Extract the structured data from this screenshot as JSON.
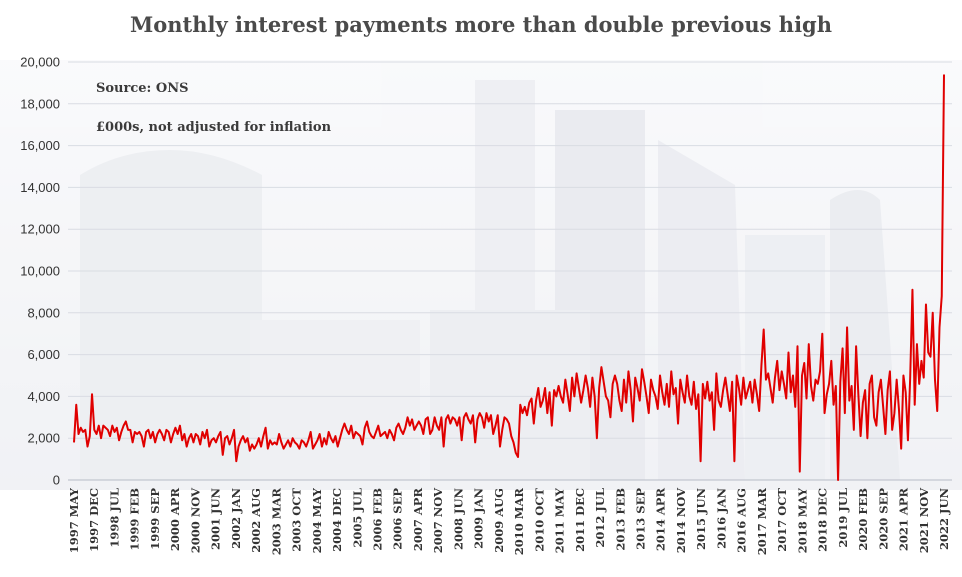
{
  "chart_title": "Monthly interest payments more than double previous high",
  "source_note": "Source: ONS",
  "units_note": "£000s, not adjusted for inflation",
  "colors": {
    "line": "#e00000",
    "grid": "#d9dce3",
    "background_tint": "#eef0f5"
  },
  "chart_data": {
    "type": "line",
    "title": "Monthly interest payments more than double previous high",
    "xlabel": "",
    "ylabel": "",
    "ylim": [
      0,
      20000
    ],
    "yticks": [
      0,
      2000,
      4000,
      6000,
      8000,
      10000,
      12000,
      14000,
      16000,
      18000,
      20000
    ],
    "ytick_labels": [
      "0",
      "2,000",
      "4,000",
      "6,000",
      "8,000",
      "10,000",
      "12,000",
      "14,000",
      "16,000",
      "18,000",
      "20,000"
    ],
    "grid": true,
    "xtick_labels": [
      "1997 MAY",
      "1997 DEC",
      "1998 JUL",
      "1999 FEB",
      "1999 SEP",
      "2000 APR",
      "2000 NOV",
      "2001 JUN",
      "2002 JAN",
      "2002 AUG",
      "2003 MAR",
      "2003 OCT",
      "2004 MAY",
      "2004 DEC",
      "2005 JUL",
      "2006 FEB",
      "2006 SEP",
      "2007 APR",
      "2007 NOV",
      "2008 JUN",
      "2009 JAN",
      "2009 AUG",
      "2010 MAR",
      "2010 OCT",
      "2011 MAY",
      "2011 DEC",
      "2012 JUL",
      "2013 FEB",
      "2013 SEP",
      "2014 APR",
      "2014 NOV",
      "2015 JUN",
      "2016 JAN",
      "2016 AUG",
      "2017 MAR",
      "2017 OCT",
      "2018 MAY",
      "2018 DEC",
      "2019 JUL",
      "2020 FEB",
      "2020 SEP",
      "2021 APR",
      "2021 NOV",
      "2022 JUN"
    ],
    "series": [
      {
        "x_start": "1997 MAY",
        "x_end": "2022 JUN",
        "frequency": "monthly",
        "values": [
          1800,
          3600,
          2200,
          2500,
          2300,
          2400,
          1600,
          2100,
          4100,
          2400,
          2200,
          2600,
          2000,
          2600,
          2500,
          2400,
          2100,
          2600,
          2300,
          2500,
          1900,
          2300,
          2600,
          2800,
          2400,
          2400,
          1800,
          2300,
          2200,
          2300,
          2100,
          1600,
          2300,
          2400,
          2000,
          2300,
          1800,
          2200,
          2400,
          2200,
          1900,
          2400,
          2300,
          1800,
          2200,
          2500,
          2200,
          2600,
          1900,
          2200,
          1600,
          2000,
          2200,
          1800,
          2200,
          2100,
          1700,
          2300,
          2000,
          2400,
          1600,
          1900,
          2000,
          1800,
          2100,
          2300,
          1200,
          2000,
          2100,
          1700,
          2000,
          2400,
          900,
          1600,
          1900,
          2100,
          1800,
          2000,
          1400,
          1700,
          1500,
          1700,
          2000,
          1600,
          2100,
          2500,
          1500,
          1900,
          1700,
          1800,
          1700,
          2200,
          1800,
          1500,
          1700,
          1900,
          1600,
          2000,
          1800,
          1700,
          1500,
          1900,
          1800,
          1600,
          1900,
          2300,
          1500,
          1700,
          1900,
          2200,
          1600,
          2000,
          1700,
          2300,
          2000,
          1800,
          2100,
          1600,
          2000,
          2400,
          2700,
          2400,
          2200,
          2600,
          2000,
          2300,
          2200,
          2100,
          1700,
          2500,
          2800,
          2300,
          2100,
          2000,
          2300,
          2600,
          2100,
          2200,
          2300,
          2000,
          2400,
          2200,
          1900,
          2500,
          2700,
          2400,
          2200,
          2500,
          3000,
          2600,
          2900,
          2400,
          2600,
          2800,
          2600,
          2200,
          2900,
          3000,
          2200,
          2400,
          3000,
          2600,
          2400,
          3000,
          1600,
          2900,
          3100,
          2700,
          3000,
          2900,
          2600,
          3000,
          1900,
          3000,
          3200,
          2900,
          2700,
          3100,
          1800,
          2900,
          3200,
          3000,
          2500,
          3200,
          2800,
          3100,
          2200,
          2600,
          3100,
          1600,
          2400,
          3000,
          2900,
          2700,
          2100,
          1800,
          1300,
          1100,
          3600,
          3200,
          3500,
          3100,
          3700,
          3900,
          2700,
          3800,
          4400,
          3500,
          3800,
          4400,
          3200,
          4200,
          2600,
          4300,
          4000,
          4500,
          4000,
          3700,
          4800,
          4100,
          3300,
          4900,
          4000,
          5100,
          4400,
          3700,
          4300,
          5000,
          4400,
          3500,
          4900,
          4000,
          2000,
          4400,
          5400,
          4700,
          4000,
          3800,
          3000,
          4600,
          5000,
          4600,
          3800,
          3300,
          4800,
          3700,
          5200,
          4300,
          2800,
          4900,
          4400,
          3800,
          5300,
          4700,
          4000,
          3200,
          4800,
          4300,
          4000,
          3400,
          5000,
          4200,
          3600,
          4600,
          3500,
          5200,
          4100,
          4400,
          2700,
          4800,
          4200,
          3700,
          5000,
          4000,
          3600,
          4700,
          3400,
          4100,
          900,
          4600,
          3900,
          4700,
          3800,
          4200,
          2400,
          5100,
          3800,
          3500,
          4300,
          4900,
          4100,
          3300,
          4700,
          900,
          5000,
          4400,
          3600,
          4900,
          3900,
          4300,
          4700,
          3700,
          4800,
          4100,
          3300,
          5500,
          7200,
          4800,
          5100,
          4400,
          3700,
          4900,
          5700,
          4300,
          5200,
          4600,
          3900,
          6100,
          4200,
          5000,
          3500,
          6400,
          400,
          5000,
          5600,
          3900,
          6500,
          4500,
          3800,
          4800,
          4600,
          5200,
          7000,
          3200,
          4100,
          4600,
          5700,
          3600,
          4500,
          0,
          4700,
          6300,
          3200,
          7300,
          3800,
          4500,
          2400,
          6400,
          4100,
          2100,
          3700,
          4300,
          2000,
          4600,
          5000,
          3000,
          2600,
          4200,
          4800,
          3500,
          2200,
          4300,
          5200,
          2400,
          3200,
          4800,
          3400,
          1500,
          5000,
          4200,
          1900,
          4900,
          9100,
          3600,
          6500,
          4600,
          5700,
          4900,
          8400,
          6100,
          5900,
          8000,
          4800,
          3300,
          7300,
          8800,
          19400
        ]
      }
    ]
  }
}
